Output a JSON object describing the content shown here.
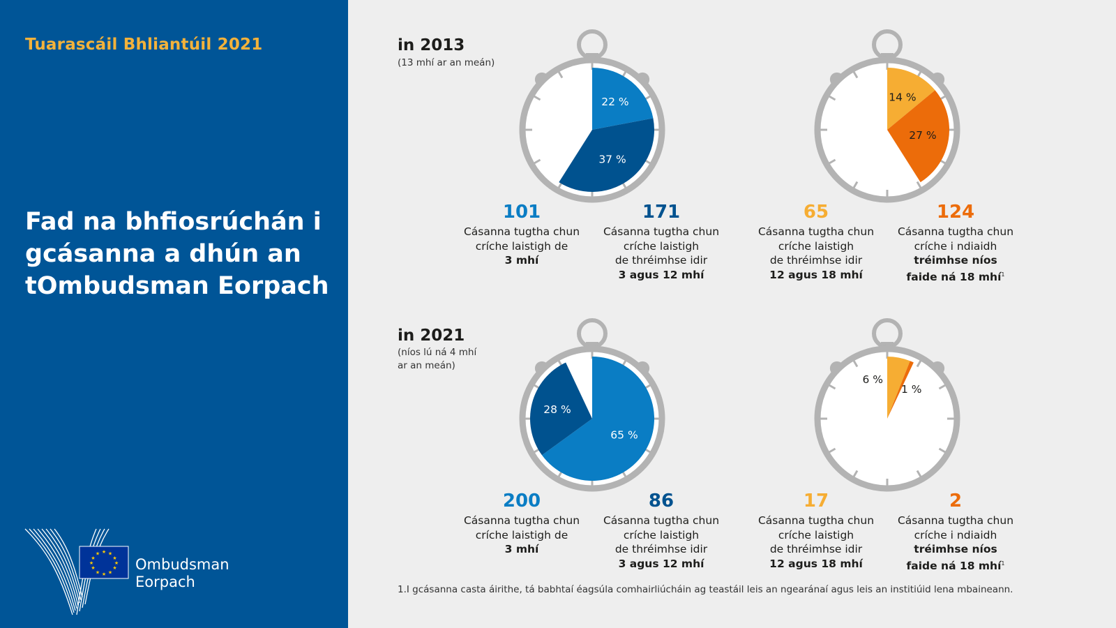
{
  "header": {
    "report_title": "Tuarascáil Bhliantúil 2021",
    "main_title": "Fad na bhfiosrúchán i gcásanna a dhún an tOmbudsman Eorpach"
  },
  "logo": {
    "line1": "Ombudsman",
    "line2": "Eorpach"
  },
  "colors": {
    "light_blue": "#0a7dc4",
    "dark_blue": "#00528f",
    "yellow": "#f6ad33",
    "orange": "#ec6c0a",
    "ring": "#b3b3b3"
  },
  "chart_data": [
    {
      "type": "pie",
      "title": "in 2013",
      "subtitle": "(13 mhí ar an meán)",
      "slices": [
        {
          "value": 22,
          "label": "22 %",
          "color": "#0a7dc4"
        },
        {
          "value": 37,
          "label": "37 %",
          "color": "#00528f"
        }
      ]
    },
    {
      "type": "pie",
      "title": "",
      "slices": [
        {
          "value": 14,
          "label": "14 %",
          "color": "#f6ad33"
        },
        {
          "value": 27,
          "label": "27 %",
          "color": "#ec6c0a"
        }
      ]
    },
    {
      "type": "pie",
      "title": "in 2021",
      "subtitle_lines": [
        "(níos lú ná 4 mhí",
        "ar an meán)"
      ],
      "slices": [
        {
          "value": 65,
          "label": "65 %",
          "color": "#0a7dc4"
        },
        {
          "value": 28,
          "label": "28 %",
          "color": "#00528f"
        }
      ]
    },
    {
      "type": "pie",
      "title": "",
      "slices": [
        {
          "value": 6,
          "label": "6 %",
          "color": "#f6ad33"
        },
        {
          "value": 1,
          "label": "1 %",
          "color": "#ec6c0a"
        }
      ]
    }
  ],
  "stats_2013": [
    {
      "number": "101",
      "lines": [
        "Cásanna tugtha chun",
        "críche laistigh de"
      ],
      "bold": "3 mhí",
      "color": "#0a7dc4"
    },
    {
      "number": "171",
      "lines": [
        "Cásanna tugtha chun",
        "críche laistigh",
        "de thréimhse idir"
      ],
      "bold": "3 agus 12 mhí",
      "color": "#00528f"
    },
    {
      "number": "65",
      "lines": [
        "Cásanna tugtha chun",
        "críche laistigh",
        "de thréimhse idir"
      ],
      "bold": "12 agus 18 mhí",
      "color": "#f6ad33"
    },
    {
      "number": "124",
      "lines": [
        "Cásanna tugtha chun",
        "críche i ndiaidh"
      ],
      "bold_lines": [
        "tréimhse níos",
        "faide ná 18 mhí"
      ],
      "sup": "1",
      "color": "#ec6c0a"
    }
  ],
  "stats_2021": [
    {
      "number": "200",
      "lines": [
        "Cásanna tugtha chun",
        "críche laistigh de"
      ],
      "bold": "3 mhí",
      "color": "#0a7dc4"
    },
    {
      "number": "86",
      "lines": [
        "Cásanna tugtha chun",
        "críche laistigh",
        "de thréimhse idir"
      ],
      "bold": "3 agus 12 mhí",
      "color": "#00528f"
    },
    {
      "number": "17",
      "lines": [
        "Cásanna tugtha chun",
        "críche laistigh",
        "de thréimhse idir"
      ],
      "bold": "12 agus 18 mhí",
      "color": "#f6ad33"
    },
    {
      "number": "2",
      "lines": [
        "Cásanna tugtha chun",
        "críche i ndiaidh"
      ],
      "bold_lines": [
        "tréimhse níos",
        "faide ná 18 mhí"
      ],
      "sup": "1",
      "color": "#ec6c0a"
    }
  ],
  "footnote": "1.I gcásanna casta áirithe, tá babhtaí éagsúla comhairliúcháin ag teastáil leis an ngearánaí agus leis an institiúid lena mbaineann."
}
